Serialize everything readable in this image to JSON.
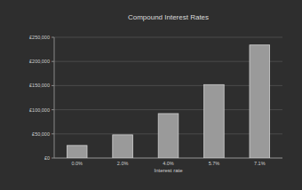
{
  "chart_data": {
    "type": "bar",
    "title": "Compound Interest Rates",
    "x_label": "Interest rate",
    "categories": [
      "0.0%",
      "2.0%",
      "4.0%",
      "5.7%",
      "7.1%"
    ],
    "values": [
      26000,
      48000,
      92000,
      152000,
      234000
    ],
    "color": "#9a9a9a",
    "ylim": [
      0,
      250000
    ],
    "yticks": [
      {
        "value": 0,
        "label": "£0"
      },
      {
        "value": 50000,
        "label": "£50,000"
      },
      {
        "value": 100000,
        "label": "£100,000"
      },
      {
        "value": 150000,
        "label": "£150,000"
      },
      {
        "value": 200000,
        "label": "£200,000"
      },
      {
        "value": 250000,
        "label": "£250,000"
      }
    ],
    "grid": true
  }
}
